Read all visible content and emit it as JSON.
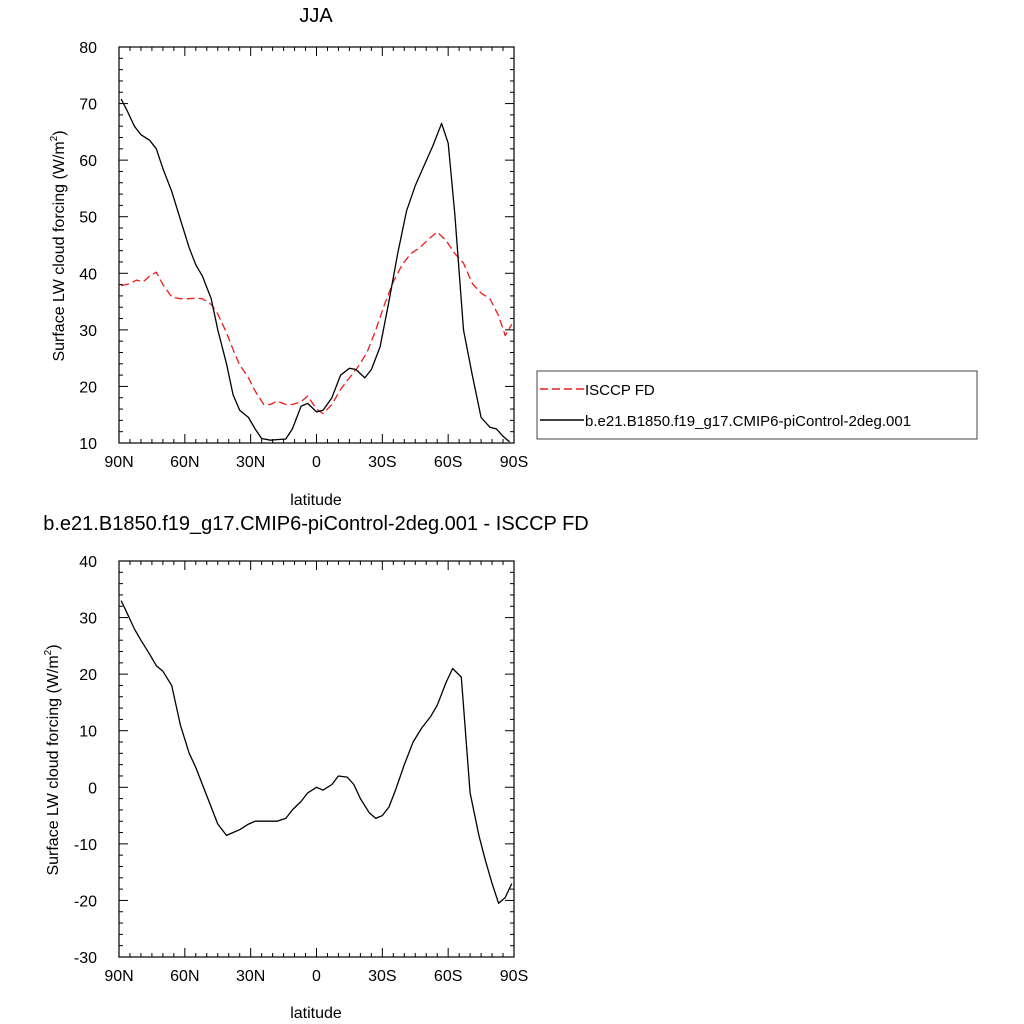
{
  "colors": {
    "model": "#000000",
    "obs": "#ee1c1c"
  },
  "chart_data": [
    {
      "type": "line",
      "title": "JJA",
      "xlabel": "latitude",
      "ylabel": "Surface LW cloud forcing (W/m²)",
      "ylabel_main": "Surface LW cloud forcing (W/m",
      "ylabel_sup": "2",
      "ylabel_close": ")",
      "xlim": [
        -90,
        90
      ],
      "ylim": [
        10,
        80
      ],
      "x_ticks": [
        -90,
        -60,
        -30,
        0,
        30,
        60,
        90
      ],
      "x_tick_labels": [
        "90N",
        "60N",
        "30N",
        "0",
        "30S",
        "60S",
        "90S"
      ],
      "y_ticks": [
        10,
        20,
        30,
        40,
        50,
        60,
        70,
        80
      ],
      "y_tick_labels": [
        "10",
        "20",
        "30",
        "40",
        "50",
        "60",
        "70",
        "80"
      ],
      "legend": "outside-right",
      "grid": false,
      "series": [
        {
          "name": "ISCCP FD",
          "style": "dashed",
          "color": "#ee1c1c",
          "x": [
            -89,
            -85,
            -82,
            -79,
            -76,
            -73,
            -70,
            -66,
            -62,
            -58,
            -55,
            -52,
            -48,
            -45,
            -41,
            -38,
            -35,
            -31,
            -28,
            -24,
            -21,
            -18,
            -14,
            -11,
            -7,
            -4,
            0,
            3,
            7,
            11,
            15,
            19,
            23,
            27,
            31,
            35,
            39,
            43,
            47,
            51,
            55,
            59,
            63,
            67,
            71,
            75,
            79,
            83,
            86,
            89
          ],
          "y": [
            37.8,
            38.2,
            38.8,
            38.5,
            39.5,
            40.2,
            38,
            35.8,
            35.5,
            35.5,
            35.6,
            35.5,
            34.5,
            32.8,
            29.5,
            26.5,
            23.8,
            21.5,
            19.2,
            16.8,
            16.8,
            17.4,
            16.8,
            16.8,
            17.3,
            18.3,
            16,
            15.2,
            16.8,
            19.5,
            21.5,
            23.5,
            26,
            30,
            34.5,
            38.5,
            41.5,
            43.5,
            44.5,
            46,
            47.3,
            45.8,
            43.5,
            41.8,
            38.2,
            36.5,
            35.5,
            32.5,
            29,
            31
          ]
        },
        {
          "name": "b.e21.B1850.f19_g17.CMIP6-piControl-2deg.001",
          "style": "solid",
          "color": "#000000",
          "x": [
            -89,
            -86,
            -83,
            -80,
            -76,
            -73,
            -70,
            -66,
            -62,
            -58,
            -55,
            -52,
            -48,
            -45,
            -41,
            -38,
            -35,
            -31,
            -28,
            -25,
            -21,
            -18,
            -14,
            -11,
            -7,
            -4,
            0,
            3,
            7,
            11,
            15,
            18,
            22,
            25,
            29,
            33,
            37,
            41,
            45,
            49,
            53,
            57,
            60,
            63,
            67,
            71,
            75,
            79,
            82,
            85,
            88
          ],
          "y": [
            70.8,
            68.5,
            66,
            64.5,
            63.5,
            62,
            58.5,
            54.5,
            49.5,
            44.5,
            41.5,
            39.5,
            35.5,
            30,
            24,
            18.5,
            15.8,
            14.5,
            12.5,
            10.8,
            10.5,
            10.6,
            10.7,
            12.5,
            16.5,
            17,
            15.5,
            15.8,
            18,
            22,
            23.2,
            23,
            21.5,
            23,
            27,
            35,
            43.5,
            51,
            55.5,
            59,
            62.5,
            66.5,
            63,
            50.5,
            30,
            22,
            14.5,
            12.8,
            12.5,
            11.2,
            10.2
          ]
        }
      ]
    },
    {
      "type": "line",
      "title": "b.e21.B1850.f19_g17.CMIP6-piControl-2deg.001 - ISCCP FD",
      "xlabel": "latitude",
      "ylabel": "Surface LW cloud forcing (W/m²)",
      "ylabel_main": "Surface LW cloud forcing (W/m",
      "ylabel_sup": "2",
      "ylabel_close": ")",
      "xlim": [
        -90,
        90
      ],
      "ylim": [
        -30,
        40
      ],
      "x_ticks": [
        -90,
        -60,
        -30,
        0,
        30,
        60,
        90
      ],
      "x_tick_labels": [
        "90N",
        "60N",
        "30N",
        "0",
        "30S",
        "60S",
        "90S"
      ],
      "y_ticks": [
        -30,
        -20,
        -10,
        0,
        10,
        20,
        30,
        40
      ],
      "y_tick_labels": [
        "-30",
        "-20",
        "-10",
        "0",
        "10",
        "20",
        "30",
        "40"
      ],
      "grid": false,
      "series": [
        {
          "style": "solid",
          "color": "#000000",
          "x": [
            -89,
            -86,
            -83,
            -80,
            -76,
            -73,
            -70,
            -66,
            -62,
            -58,
            -55,
            -52,
            -48,
            -45,
            -41,
            -38,
            -35,
            -31,
            -28,
            -24,
            -21,
            -18,
            -14,
            -11,
            -7,
            -4,
            0,
            3,
            7,
            10,
            14,
            17,
            20,
            24,
            27,
            30,
            33,
            36,
            40,
            44,
            48,
            52,
            55,
            59,
            62,
            66,
            70,
            74,
            77,
            80,
            83,
            86,
            89
          ],
          "y": [
            33,
            30.5,
            28,
            26,
            23.5,
            21.5,
            20.5,
            18,
            11,
            6,
            3.5,
            0.5,
            -3.5,
            -6.5,
            -8.5,
            -8,
            -7.5,
            -6.5,
            -6,
            -6,
            -6,
            -6,
            -5.5,
            -4,
            -2.5,
            -1,
            0,
            -0.5,
            0.5,
            2,
            1.8,
            0.5,
            -2,
            -4.5,
            -5.5,
            -5,
            -3.5,
            -0.5,
            4,
            8,
            10.5,
            12.5,
            14.5,
            18.5,
            21,
            19.5,
            -1,
            -8.5,
            -13,
            -17,
            -20.5,
            -19.5,
            -17
          ]
        }
      ]
    }
  ]
}
